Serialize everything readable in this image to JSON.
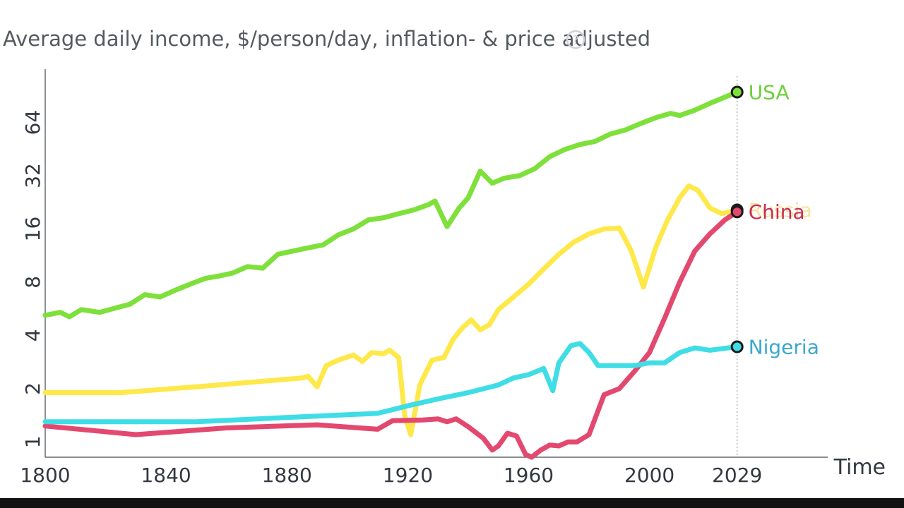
{
  "chart_data": {
    "type": "line",
    "title": "Average daily income, $/person/day, inflation- & price adjusted",
    "help_icon": "question-circle-icon",
    "help_glyph": "?",
    "xlabel": "Time",
    "ylabel": "",
    "y_scale": "log2",
    "xlim": [
      1800,
      2059
    ],
    "ylim": [
      0.82,
      128
    ],
    "x_ticks": [
      1800,
      1840,
      1880,
      1920,
      1960,
      2000,
      2029
    ],
    "x_tick_labels": [
      "1800",
      "1840",
      "1880",
      "1920",
      "1960",
      "2000",
      "2029"
    ],
    "y_ticks": [
      1,
      2,
      4,
      8,
      16,
      32,
      64
    ],
    "y_tick_labels": [
      "1",
      "2",
      "4",
      "8",
      "16",
      "32",
      "64"
    ],
    "grid": false,
    "series": [
      {
        "name": "USA",
        "label": "USA",
        "color": "#7ee03a",
        "label_color": "#6ecf3a",
        "points": [
          [
            1800,
            5.2
          ],
          [
            1805,
            5.4
          ],
          [
            1808,
            5.1
          ],
          [
            1812,
            5.6
          ],
          [
            1818,
            5.4
          ],
          [
            1823,
            5.7
          ],
          [
            1828,
            6.0
          ],
          [
            1833,
            6.8
          ],
          [
            1838,
            6.6
          ],
          [
            1843,
            7.2
          ],
          [
            1848,
            7.8
          ],
          [
            1853,
            8.4
          ],
          [
            1858,
            8.7
          ],
          [
            1862,
            9.0
          ],
          [
            1867,
            9.8
          ],
          [
            1872,
            9.6
          ],
          [
            1877,
            11.5
          ],
          [
            1882,
            12.0
          ],
          [
            1887,
            12.5
          ],
          [
            1892,
            13.0
          ],
          [
            1897,
            14.8
          ],
          [
            1902,
            16.0
          ],
          [
            1907,
            18.0
          ],
          [
            1912,
            18.5
          ],
          [
            1917,
            19.5
          ],
          [
            1922,
            20.5
          ],
          [
            1927,
            22.0
          ],
          [
            1929,
            23.0
          ],
          [
            1933,
            16.5
          ],
          [
            1937,
            21.0
          ],
          [
            1940,
            24.0
          ],
          [
            1944,
            34.0
          ],
          [
            1948,
            29.0
          ],
          [
            1952,
            31.0
          ],
          [
            1957,
            32.0
          ],
          [
            1962,
            35.0
          ],
          [
            1967,
            41.0
          ],
          [
            1972,
            45.0
          ],
          [
            1977,
            48.0
          ],
          [
            1982,
            50.0
          ],
          [
            1987,
            55.0
          ],
          [
            1992,
            58.0
          ],
          [
            1997,
            63.0
          ],
          [
            2002,
            68.0
          ],
          [
            2007,
            72.0
          ],
          [
            2010,
            70.0
          ],
          [
            2015,
            75.0
          ],
          [
            2020,
            82.0
          ],
          [
            2025,
            89.0
          ],
          [
            2029,
            95.0
          ]
        ]
      },
      {
        "name": "Russia",
        "label": "Russia",
        "color": "#ffe84a",
        "label_color": "#f5c84a",
        "points": [
          [
            1800,
            1.9
          ],
          [
            1825,
            1.9
          ],
          [
            1850,
            2.05
          ],
          [
            1885,
            2.3
          ],
          [
            1887,
            2.35
          ],
          [
            1890,
            2.05
          ],
          [
            1893,
            2.7
          ],
          [
            1897,
            2.9
          ],
          [
            1902,
            3.1
          ],
          [
            1905,
            2.85
          ],
          [
            1908,
            3.2
          ],
          [
            1912,
            3.15
          ],
          [
            1914,
            3.3
          ],
          [
            1917,
            3.0
          ],
          [
            1919,
            1.4
          ],
          [
            1921,
            1.1
          ],
          [
            1924,
            2.1
          ],
          [
            1928,
            2.9
          ],
          [
            1932,
            3.0
          ],
          [
            1935,
            3.8
          ],
          [
            1938,
            4.4
          ],
          [
            1941,
            4.9
          ],
          [
            1944,
            4.3
          ],
          [
            1947,
            4.6
          ],
          [
            1950,
            5.6
          ],
          [
            1955,
            6.6
          ],
          [
            1960,
            7.8
          ],
          [
            1965,
            9.5
          ],
          [
            1970,
            11.5
          ],
          [
            1975,
            13.5
          ],
          [
            1980,
            15.0
          ],
          [
            1985,
            16.0
          ],
          [
            1990,
            16.2
          ],
          [
            1994,
            12.0
          ],
          [
            1998,
            7.5
          ],
          [
            2002,
            12.5
          ],
          [
            2006,
            18.0
          ],
          [
            2010,
            24.0
          ],
          [
            2013,
            28.0
          ],
          [
            2016,
            26.5
          ],
          [
            2020,
            21.0
          ],
          [
            2024,
            19.5
          ],
          [
            2029,
            20.5
          ]
        ]
      },
      {
        "name": "China",
        "label": "China",
        "color": "#e3486f",
        "label_color": "#c83050",
        "points": [
          [
            1800,
            1.23
          ],
          [
            1830,
            1.1
          ],
          [
            1860,
            1.2
          ],
          [
            1890,
            1.25
          ],
          [
            1910,
            1.18
          ],
          [
            1915,
            1.32
          ],
          [
            1925,
            1.33
          ],
          [
            1930,
            1.35
          ],
          [
            1933,
            1.3
          ],
          [
            1936,
            1.35
          ],
          [
            1940,
            1.22
          ],
          [
            1945,
            1.05
          ],
          [
            1948,
            0.9
          ],
          [
            1950,
            0.95
          ],
          [
            1953,
            1.12
          ],
          [
            1956,
            1.08
          ],
          [
            1959,
            0.85
          ],
          [
            1961,
            0.82
          ],
          [
            1964,
            0.9
          ],
          [
            1967,
            0.96
          ],
          [
            1970,
            0.95
          ],
          [
            1973,
            1.0
          ],
          [
            1976,
            1.0
          ],
          [
            1980,
            1.1
          ],
          [
            1985,
            1.85
          ],
          [
            1990,
            2.0
          ],
          [
            1995,
            2.5
          ],
          [
            2000,
            3.2
          ],
          [
            2005,
            5.0
          ],
          [
            2010,
            8.0
          ],
          [
            2015,
            12.0
          ],
          [
            2020,
            15.0
          ],
          [
            2025,
            18.0
          ],
          [
            2029,
            20.0
          ]
        ]
      },
      {
        "name": "Nigeria",
        "label": "Nigeria",
        "color": "#3fdde6",
        "label_color": "#3aa8cc",
        "points": [
          [
            1800,
            1.3
          ],
          [
            1850,
            1.3
          ],
          [
            1890,
            1.4
          ],
          [
            1910,
            1.45
          ],
          [
            1920,
            1.6
          ],
          [
            1930,
            1.75
          ],
          [
            1940,
            1.9
          ],
          [
            1950,
            2.1
          ],
          [
            1955,
            2.3
          ],
          [
            1960,
            2.4
          ],
          [
            1965,
            2.6
          ],
          [
            1968,
            1.95
          ],
          [
            1970,
            2.8
          ],
          [
            1974,
            3.5
          ],
          [
            1977,
            3.6
          ],
          [
            1980,
            3.2
          ],
          [
            1983,
            2.7
          ],
          [
            1987,
            2.7
          ],
          [
            1995,
            2.7
          ],
          [
            2000,
            2.8
          ],
          [
            2005,
            2.8
          ],
          [
            2010,
            3.2
          ],
          [
            2015,
            3.4
          ],
          [
            2020,
            3.3
          ],
          [
            2029,
            3.45
          ]
        ]
      }
    ]
  }
}
